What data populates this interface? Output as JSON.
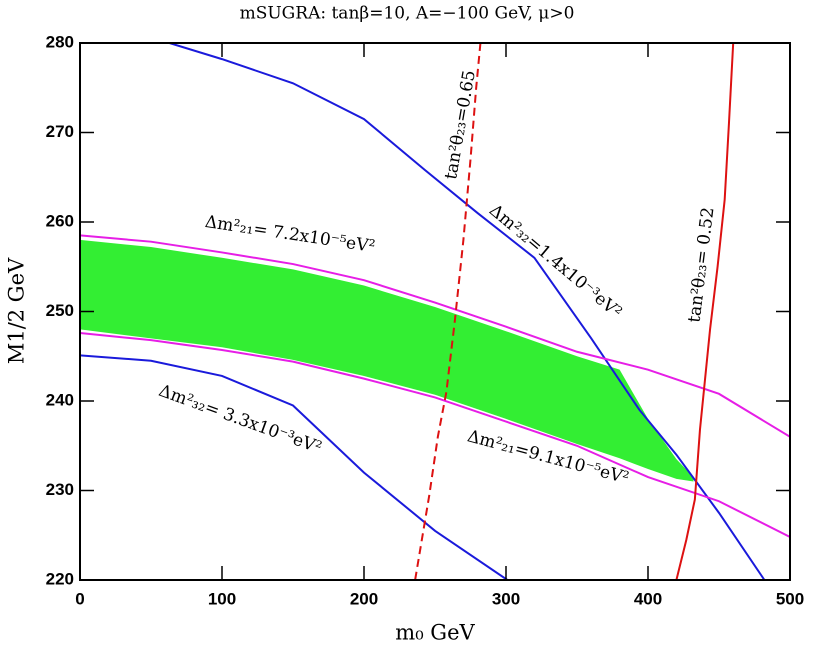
{
  "chart_data": {
    "type": "line",
    "title": "mSUGRA: tanβ=10, A=−100 GeV, μ>0",
    "x_label": "m₀ GeV",
    "y_label": "M1/2 GeV",
    "xlim": [
      0,
      500
    ],
    "ylim": [
      220,
      280
    ],
    "xticks": [
      0,
      100,
      200,
      300,
      400,
      500
    ],
    "yticks": [
      220,
      230,
      240,
      250,
      260,
      270,
      280
    ],
    "regions": [
      {
        "color": "#33ee33",
        "x": [
          0,
          50,
          100,
          150,
          200,
          250,
          300,
          350,
          380,
          400,
          420,
          432
        ],
        "y_high": [
          258,
          257.2,
          256,
          254.7,
          252.9,
          250.5,
          247.8,
          245,
          243.5,
          238,
          233.5,
          231.5
        ],
        "y_low": [
          248,
          247,
          246,
          244.6,
          242.8,
          240.7,
          238,
          235.2,
          233.6,
          232.4,
          231.3,
          231
        ]
      }
    ],
    "series": [
      {
        "color": "#1a1adb",
        "dash": false,
        "x": [
          63,
          100,
          150,
          200,
          243,
          280,
          320,
          360,
          394,
          420,
          450,
          482
        ],
        "values": [
          280,
          278.2,
          275.5,
          271.5,
          265.8,
          261,
          256,
          247,
          239,
          234,
          227.5,
          220
        ]
      },
      {
        "color": "#1a1adb",
        "dash": false,
        "x": [
          0,
          50,
          100,
          150,
          200,
          250,
          301
        ],
        "values": [
          245.1,
          244.5,
          242.8,
          239.5,
          232,
          225.5,
          220
        ]
      },
      {
        "color": "#e61ee6",
        "dash": false,
        "x": [
          0,
          50,
          100,
          150,
          200,
          250,
          300,
          350,
          400,
          450,
          500
        ],
        "values": [
          258.5,
          257.8,
          256.6,
          255.3,
          253.5,
          251,
          248.3,
          245.5,
          243.5,
          240.8,
          236
        ]
      },
      {
        "color": "#e61ee6",
        "dash": false,
        "x": [
          0,
          50,
          100,
          150,
          200,
          250,
          300,
          350,
          400,
          450,
          500
        ],
        "values": [
          247.6,
          246.8,
          245.7,
          244.4,
          242.5,
          240.4,
          237.7,
          235,
          231.5,
          228.8,
          224.8
        ]
      },
      {
        "color": "#dd1111",
        "dash": true,
        "x": [
          282,
          279,
          275,
          270,
          264,
          258,
          252,
          246,
          236
        ],
        "values": [
          280,
          275,
          267,
          258,
          249,
          241,
          236,
          229.5,
          220
        ]
      },
      {
        "color": "#dd1111",
        "dash": false,
        "x": [
          460,
          457,
          454,
          449,
          443.7,
          436.6,
          433,
          427,
          420
        ],
        "values": [
          280,
          271,
          262.5,
          255,
          248,
          236.8,
          229,
          224.5,
          220
        ]
      }
    ],
    "annotations": [
      "Δm²₂₁= 7.2x10⁻⁵eV²",
      "Δm²₃₂=1.4x10⁻³eV²",
      "Δm²₃₂= 3.3x10⁻³eV²",
      "Δm²₂₁=9.1x10⁻⁵eV²",
      "tan²θ₂₃=0.65",
      "tan²θ₂₃= 0.52"
    ]
  }
}
